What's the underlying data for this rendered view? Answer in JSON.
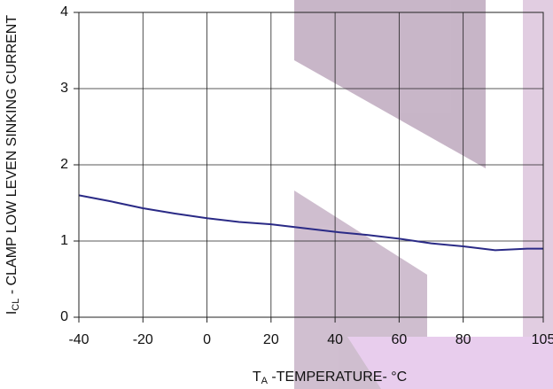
{
  "chart_data": {
    "type": "line",
    "x_label": {
      "main": "T",
      "sub": "A",
      "rest": " -TEMPERATURE- °C"
    },
    "y_label": {
      "main": "I",
      "sub": "CL",
      "rest": " - CLAMP LOW LEVEN SINKING CURRENT"
    },
    "x": [
      -40,
      -30,
      -20,
      -10,
      0,
      10,
      20,
      30,
      40,
      50,
      60,
      70,
      80,
      90,
      100,
      105
    ],
    "series": [
      {
        "color": "#2a2a86",
        "values": [
          1.6,
          1.52,
          1.43,
          1.36,
          1.3,
          1.25,
          1.22,
          1.17,
          1.12,
          1.08,
          1.03,
          0.97,
          0.93,
          0.88,
          0.9,
          0.9
        ]
      }
    ],
    "xlim": [
      -40,
      105
    ],
    "xticks": [
      -40,
      -20,
      0,
      20,
      40,
      60,
      80,
      105
    ],
    "ylim": [
      0,
      4
    ],
    "yticks": [
      0,
      1,
      2,
      3,
      4
    ],
    "grid": true
  }
}
